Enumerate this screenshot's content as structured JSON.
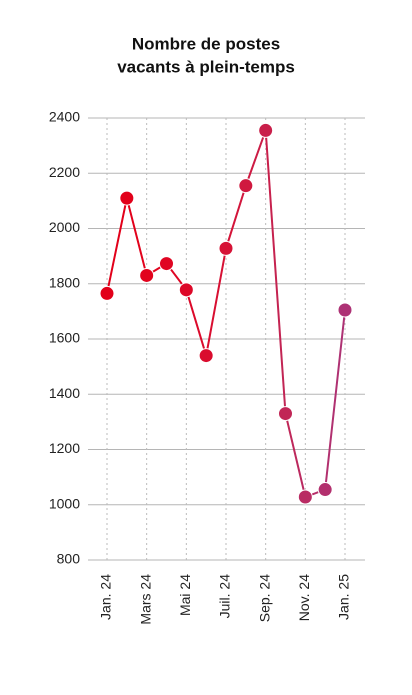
{
  "chart_data": {
    "type": "line",
    "title": [
      "Nombre de postes",
      "vacants à plein-temps"
    ],
    "categories": [
      "Jan. 24",
      null,
      "Mars 24",
      null,
      "Mai 24",
      null,
      "Juil. 24",
      null,
      "Sep. 24",
      null,
      "Nov. 24",
      null,
      "Jan. 25"
    ],
    "values": [
      1765,
      2110,
      1830,
      1873,
      1778,
      1540,
      1928,
      2155,
      2355,
      1330,
      1028,
      1055,
      1705
    ],
    "point_colors": [
      "#e2001a",
      "#e2001a",
      "#e2031d",
      "#e00522",
      "#dd0828",
      "#da0c2e",
      "#d61236",
      "#d0183f",
      "#c91f4a",
      "#c12656",
      "#b92b63",
      "#b3306e",
      "#ad3275"
    ],
    "ylim": [
      800,
      2400
    ],
    "yticks": [
      800,
      1000,
      1200,
      1400,
      1600,
      1800,
      2000,
      2200,
      2400
    ],
    "grid": true
  }
}
